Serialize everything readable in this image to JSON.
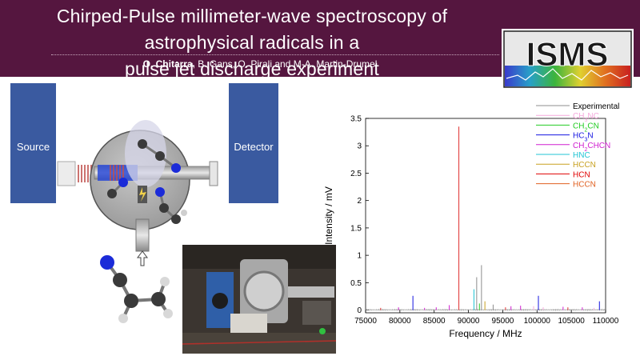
{
  "header": {
    "title_line1": "Chirped-Pulse millimeter-wave spectroscopy of astrophysical radicals in a",
    "title_line2": "pulse jet discharge experiment",
    "author_main": "O. Chitarra",
    "authors_rest": ", B. Gans, O. Pirali and M-A. Martin-Drumel",
    "logo_text": "ISMS"
  },
  "diagram": {
    "source_label": "Source",
    "detector_label": "Detector"
  },
  "colors": {
    "header_bg": "#55163f",
    "box_blue": "#3a5aa0"
  },
  "chart_data": {
    "type": "line",
    "xlabel": "Frequency / MHz",
    "ylabel": "Intensity / mV",
    "xlim": [
      75000,
      110000
    ],
    "ylim": [
      -0.05,
      3.5
    ],
    "x_ticks": [
      "75000",
      "80000",
      "85000",
      "90000",
      "95000",
      "100000",
      "105000",
      "110000"
    ],
    "y_ticks": [
      "0",
      "0.5",
      "1",
      "1.5",
      "2",
      "2.5",
      "3",
      "3.5"
    ],
    "legend_position": "top-right",
    "legend": [
      {
        "label": "Experimental",
        "color": "#8c8c8c"
      },
      {
        "label": "CH3NC",
        "color": "#f6a8dc",
        "base": "CH",
        "sub1": "3",
        "rest": "NC"
      },
      {
        "label": "CH2CN",
        "color": "#22cc22",
        "base": "CH",
        "sub1": "2",
        "rest": "CN"
      },
      {
        "label": "HC3N",
        "color": "#1515e0",
        "base": "HC",
        "sub1": "3",
        "rest": "N"
      },
      {
        "label": "CH2CHCN",
        "color": "#d020d0",
        "base": "CH",
        "sub1": "2",
        "rest": "CHCN"
      },
      {
        "label": "HNC",
        "color": "#20c4d4"
      },
      {
        "label": "HCCN",
        "color": "#c8a020"
      },
      {
        "label": "HCN",
        "color": "#e00000"
      },
      {
        "label": "HCCN",
        "color": "#e06020"
      }
    ],
    "peaks": [
      {
        "x": 88600,
        "y": 3.35,
        "color": "#e03030"
      },
      {
        "x": 91900,
        "y": 0.82,
        "color": "#8c8c8c"
      },
      {
        "x": 91200,
        "y": 0.6,
        "color": "#8c8c8c"
      },
      {
        "x": 90800,
        "y": 0.38,
        "color": "#20c4d4"
      },
      {
        "x": 81900,
        "y": 0.26,
        "color": "#1515e0"
      },
      {
        "x": 100200,
        "y": 0.26,
        "color": "#1515e0"
      },
      {
        "x": 109100,
        "y": 0.16,
        "color": "#1515e0"
      },
      {
        "x": 92400,
        "y": 0.16,
        "color": "#c8a020"
      },
      {
        "x": 91600,
        "y": 0.12,
        "color": "#22cc22"
      },
      {
        "x": 87200,
        "y": 0.09,
        "color": "#d020d0"
      },
      {
        "x": 97600,
        "y": 0.08,
        "color": "#d020d0"
      },
      {
        "x": 96200,
        "y": 0.07,
        "color": "#d020d0"
      },
      {
        "x": 85300,
        "y": 0.05,
        "color": "#d020d0"
      },
      {
        "x": 79800,
        "y": 0.05,
        "color": "#d020d0"
      },
      {
        "x": 103800,
        "y": 0.06,
        "color": "#d020d0"
      },
      {
        "x": 106600,
        "y": 0.05,
        "color": "#d020d0"
      },
      {
        "x": 93600,
        "y": 0.1,
        "color": "#8c8c8c"
      },
      {
        "x": 99500,
        "y": 0.07,
        "color": "#f6a8dc"
      },
      {
        "x": 100900,
        "y": 0.05,
        "color": "#f6a8dc"
      },
      {
        "x": 108300,
        "y": 0.04,
        "color": "#f6a8dc"
      },
      {
        "x": 77200,
        "y": 0.04,
        "color": "#e03030"
      },
      {
        "x": 83600,
        "y": 0.04,
        "color": "#d020d0"
      },
      {
        "x": 95400,
        "y": 0.05,
        "color": "#e03030"
      },
      {
        "x": 104500,
        "y": 0.05,
        "color": "#e03030"
      }
    ]
  }
}
